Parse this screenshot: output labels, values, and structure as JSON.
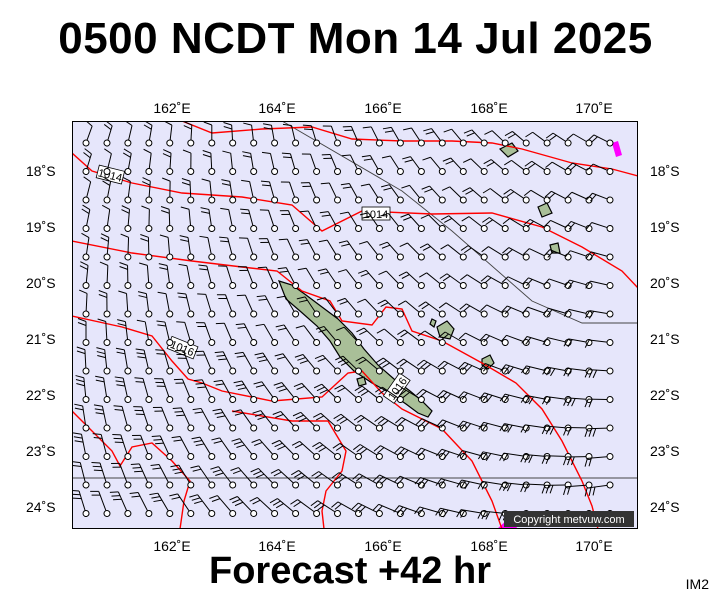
{
  "title": "0500 NCDT Mon 14 Jul 2025",
  "footer": "Forecast +42 hr",
  "corner_code": "IM2",
  "copyright": "Copyright metvuw.com",
  "colors": {
    "background": "#e6e6fb",
    "isobar": "#ff0000",
    "land": "#9fb58f",
    "wind": "#000000",
    "high_wind": "#ff00ff"
  },
  "lon_labels": [
    "162˚E",
    "164˚E",
    "166˚E",
    "168˚E",
    "170˚E"
  ],
  "lat_labels": [
    "18˚S",
    "19˚S",
    "20˚S",
    "21˚S",
    "22˚S",
    "23˚S",
    "24˚S"
  ],
  "isobar_labels": [
    "1014",
    "1014",
    "1016",
    "1016"
  ]
}
